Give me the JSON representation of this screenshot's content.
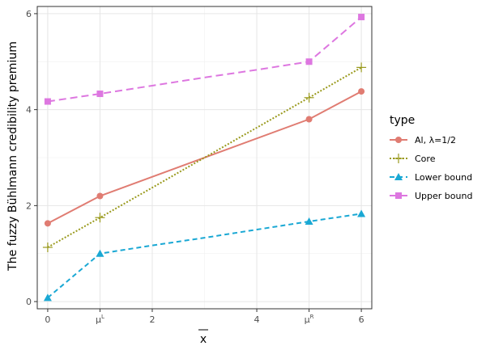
{
  "chart_data": {
    "type": "line",
    "xlabel": "x",
    "ylabel": "The fuzzy Bühlmann credibility premium",
    "xlim": [
      -0.2,
      6.2
    ],
    "ylim": [
      -0.15,
      6.15
    ],
    "x_ticks": [
      {
        "value": 0,
        "label": "0"
      },
      {
        "value": 1,
        "label": "μ",
        "sup": "L"
      },
      {
        "value": 2,
        "label": "2"
      },
      {
        "value": 4,
        "label": "4"
      },
      {
        "value": 5,
        "label": "μ",
        "sup": "R"
      },
      {
        "value": 6,
        "label": "6"
      }
    ],
    "y_ticks": [
      0,
      2,
      4,
      6
    ],
    "grid": true,
    "legend": {
      "title": "type",
      "position": "right"
    },
    "series": [
      {
        "name": "Al, λ=1/2",
        "name_parts": [
          "Al, ",
          "λ",
          "=1/2"
        ],
        "color": "#E07C72",
        "dash": "solid",
        "marker": "circle",
        "x": [
          0,
          1,
          5,
          6
        ],
        "y": [
          1.63,
          2.2,
          3.8,
          4.38
        ]
      },
      {
        "name": "Core",
        "color": "#9A9A1E",
        "dash": "dotted",
        "marker": "plus",
        "x": [
          0,
          1,
          5,
          6
        ],
        "y": [
          1.13,
          1.75,
          4.25,
          4.88
        ]
      },
      {
        "name": "Lower bound",
        "color": "#1AA8D4",
        "dash": "dashed",
        "marker": "triangle",
        "x": [
          0,
          1,
          2,
          3,
          4,
          5,
          6
        ],
        "y": [
          0.08,
          1.0,
          1.17,
          1.33,
          1.5,
          1.67,
          1.83
        ]
      },
      {
        "name": "Upper bound",
        "color": "#DD77E0",
        "dash": "longdash",
        "marker": "square",
        "x": [
          0,
          1,
          2,
          3,
          4,
          5,
          6
        ],
        "y": [
          4.17,
          4.33,
          4.5,
          4.67,
          4.83,
          5.0,
          5.93
        ]
      }
    ]
  }
}
